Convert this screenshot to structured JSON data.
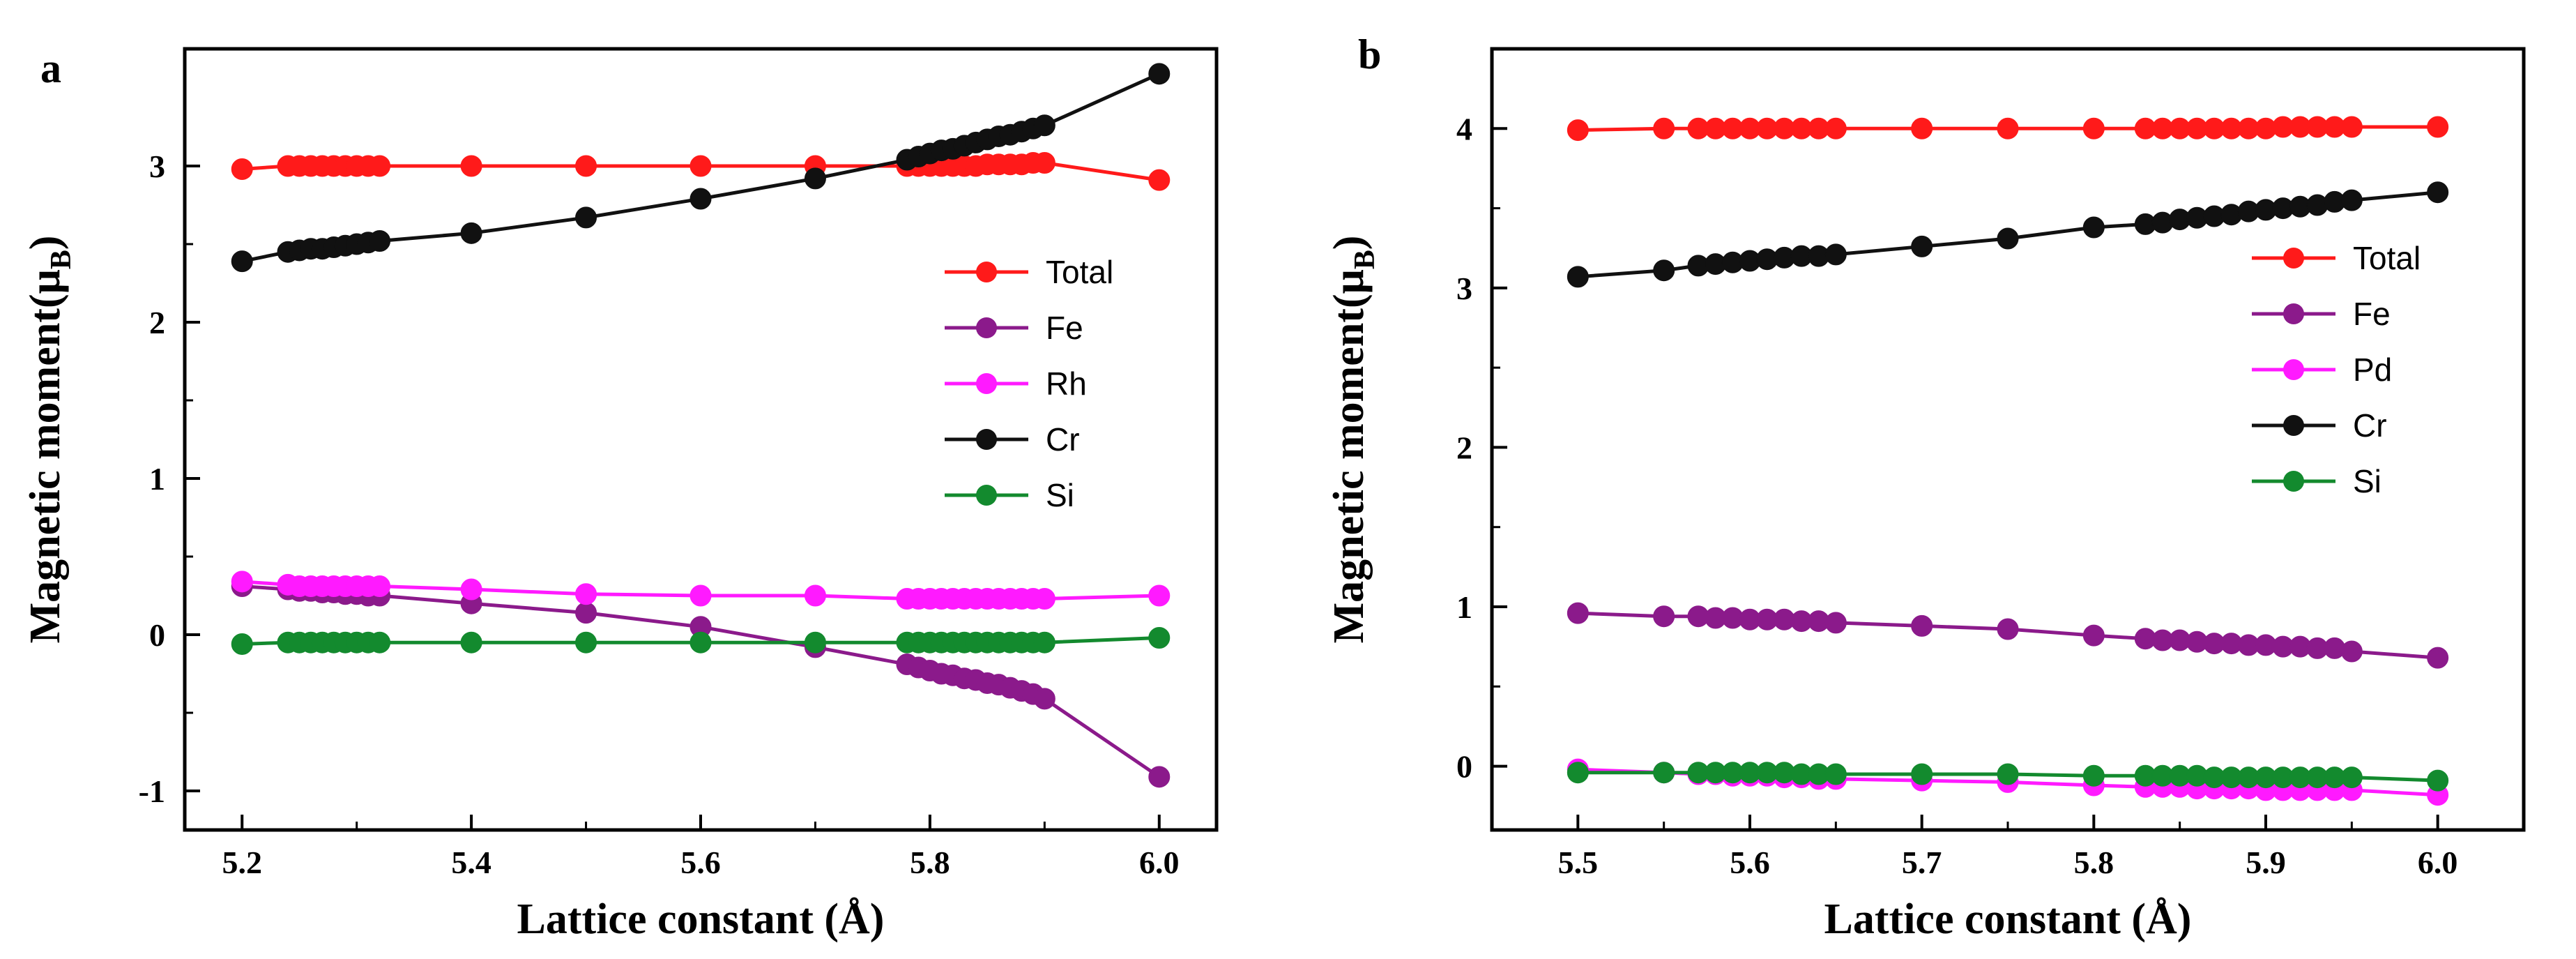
{
  "chart_data": [
    {
      "type": "line",
      "panel_label": "a",
      "xlabel": "Lattice constant (Å)",
      "ylabel": "Magnetic moment(μ_B)",
      "ylabel_main": "Magnetic moment(μ",
      "ylabel_sub": "B",
      "ylabel_close": ")",
      "xlim": [
        5.15,
        6.05
      ],
      "ylim": [
        -1.25,
        3.75
      ],
      "xticks": [
        "5.2",
        "5.4",
        "5.6",
        "5.8",
        "6.0"
      ],
      "xtick_values": [
        5.2,
        5.4,
        5.6,
        5.8,
        6.0
      ],
      "yticks": [
        "-1",
        "0",
        "1",
        "2",
        "3"
      ],
      "ytick_values": [
        -1,
        0,
        1,
        2,
        3
      ],
      "legend_position": "right-middle",
      "x": [
        5.2,
        5.24,
        5.25,
        5.26,
        5.27,
        5.28,
        5.29,
        5.3,
        5.31,
        5.32,
        5.4,
        5.5,
        5.6,
        5.7,
        5.78,
        5.79,
        5.8,
        5.81,
        5.82,
        5.83,
        5.84,
        5.85,
        5.86,
        5.87,
        5.88,
        5.89,
        5.9,
        6.0
      ],
      "series": [
        {
          "name": "Total",
          "color": "#ff1a1a",
          "values": [
            2.98,
            3.0,
            3.0,
            3.0,
            3.0,
            3.0,
            3.0,
            3.0,
            3.0,
            3.0,
            3.0,
            3.0,
            3.0,
            3.0,
            3.0,
            3.0,
            3.0,
            3.0,
            3.0,
            3.0,
            3.0,
            3.01,
            3.01,
            3.01,
            3.01,
            3.02,
            3.02,
            2.91
          ]
        },
        {
          "name": "Fe",
          "color": "#8b1a8b",
          "values": [
            0.31,
            0.29,
            0.28,
            0.28,
            0.27,
            0.27,
            0.26,
            0.26,
            0.25,
            0.25,
            0.2,
            0.14,
            0.05,
            -0.08,
            -0.19,
            -0.21,
            -0.23,
            -0.25,
            -0.26,
            -0.28,
            -0.29,
            -0.31,
            -0.32,
            -0.34,
            -0.36,
            -0.38,
            -0.41,
            -0.91
          ]
        },
        {
          "name": "Rh",
          "color": "#ff1aff",
          "values": [
            0.34,
            0.32,
            0.31,
            0.31,
            0.31,
            0.31,
            0.31,
            0.31,
            0.31,
            0.31,
            0.29,
            0.26,
            0.25,
            0.25,
            0.23,
            0.23,
            0.23,
            0.23,
            0.23,
            0.23,
            0.23,
            0.23,
            0.23,
            0.23,
            0.23,
            0.23,
            0.23,
            0.25
          ]
        },
        {
          "name": "Cr",
          "color": "#111111",
          "values": [
            2.39,
            2.45,
            2.46,
            2.47,
            2.47,
            2.48,
            2.49,
            2.5,
            2.51,
            2.52,
            2.57,
            2.67,
            2.79,
            2.92,
            3.04,
            3.06,
            3.08,
            3.1,
            3.11,
            3.13,
            3.15,
            3.17,
            3.19,
            3.2,
            3.22,
            3.24,
            3.26,
            3.59
          ]
        },
        {
          "name": "Si",
          "color": "#138a2e",
          "values": [
            -0.06,
            -0.05,
            -0.05,
            -0.05,
            -0.05,
            -0.05,
            -0.05,
            -0.05,
            -0.05,
            -0.05,
            -0.05,
            -0.05,
            -0.05,
            -0.05,
            -0.05,
            -0.05,
            -0.05,
            -0.05,
            -0.05,
            -0.05,
            -0.05,
            -0.05,
            -0.05,
            -0.05,
            -0.05,
            -0.05,
            -0.05,
            -0.02
          ]
        }
      ]
    },
    {
      "type": "line",
      "panel_label": "b",
      "xlabel": "Lattice constant (Å)",
      "ylabel": "Magnetic moment(μ_B)",
      "ylabel_main": "Magnetic moment(μ",
      "ylabel_sub": "B",
      "ylabel_close": ")",
      "xlim": [
        5.45,
        6.05
      ],
      "ylim": [
        -0.4,
        4.5
      ],
      "xticks": [
        "5.5",
        "5.6",
        "5.7",
        "5.8",
        "5.9",
        "6.0"
      ],
      "xtick_values": [
        5.5,
        5.6,
        5.7,
        5.8,
        5.9,
        6.0
      ],
      "yticks": [
        "0",
        "1",
        "2",
        "3",
        "4"
      ],
      "ytick_values": [
        0,
        1,
        2,
        3,
        4
      ],
      "legend_position": "right-middle",
      "x": [
        5.5,
        5.55,
        5.57,
        5.58,
        5.59,
        5.6,
        5.61,
        5.62,
        5.63,
        5.64,
        5.65,
        5.7,
        5.75,
        5.8,
        5.83,
        5.84,
        5.85,
        5.86,
        5.87,
        5.88,
        5.89,
        5.9,
        5.91,
        5.92,
        5.93,
        5.94,
        5.95,
        6.0
      ],
      "series": [
        {
          "name": "Total",
          "color": "#ff1a1a",
          "values": [
            3.99,
            4.0,
            4.0,
            4.0,
            4.0,
            4.0,
            4.0,
            4.0,
            4.0,
            4.0,
            4.0,
            4.0,
            4.0,
            4.0,
            4.0,
            4.0,
            4.0,
            4.0,
            4.0,
            4.0,
            4.0,
            4.0,
            4.01,
            4.01,
            4.01,
            4.01,
            4.01,
            4.01
          ]
        },
        {
          "name": "Fe",
          "color": "#8b1a8b",
          "values": [
            0.96,
            0.94,
            0.94,
            0.93,
            0.93,
            0.92,
            0.92,
            0.92,
            0.91,
            0.91,
            0.9,
            0.88,
            0.86,
            0.82,
            0.8,
            0.79,
            0.79,
            0.78,
            0.77,
            0.77,
            0.76,
            0.76,
            0.75,
            0.75,
            0.74,
            0.74,
            0.72,
            0.68
          ]
        },
        {
          "name": "Pd",
          "color": "#ff1aff",
          "values": [
            -0.02,
            -0.04,
            -0.05,
            -0.05,
            -0.06,
            -0.06,
            -0.06,
            -0.07,
            -0.07,
            -0.08,
            -0.08,
            -0.09,
            -0.1,
            -0.12,
            -0.13,
            -0.13,
            -0.13,
            -0.14,
            -0.14,
            -0.14,
            -0.14,
            -0.15,
            -0.15,
            -0.15,
            -0.15,
            -0.15,
            -0.15,
            -0.18
          ]
        },
        {
          "name": "Cr",
          "color": "#111111",
          "values": [
            3.07,
            3.11,
            3.14,
            3.15,
            3.16,
            3.17,
            3.18,
            3.19,
            3.2,
            3.2,
            3.21,
            3.26,
            3.31,
            3.38,
            3.4,
            3.41,
            3.43,
            3.44,
            3.45,
            3.46,
            3.48,
            3.49,
            3.5,
            3.51,
            3.52,
            3.54,
            3.55,
            3.6
          ]
        },
        {
          "name": "Si",
          "color": "#138a2e",
          "values": [
            -0.04,
            -0.04,
            -0.04,
            -0.04,
            -0.04,
            -0.04,
            -0.04,
            -0.04,
            -0.05,
            -0.05,
            -0.05,
            -0.05,
            -0.05,
            -0.06,
            -0.06,
            -0.06,
            -0.06,
            -0.06,
            -0.07,
            -0.07,
            -0.07,
            -0.07,
            -0.07,
            -0.07,
            -0.07,
            -0.07,
            -0.07,
            -0.09
          ]
        }
      ]
    }
  ]
}
